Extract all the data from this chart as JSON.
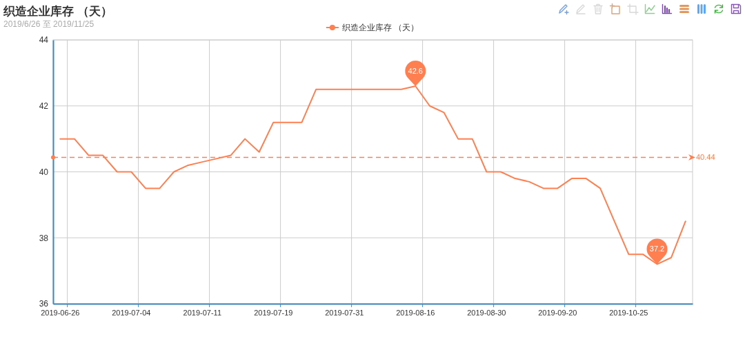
{
  "chart_data": {
    "type": "line",
    "title": "织造企业库存 （天）",
    "subtitle": "2019/6/26 至 2019/11/25",
    "categories": [
      "2019-06-26",
      null,
      null,
      null,
      null,
      "2019-07-04",
      null,
      null,
      null,
      null,
      "2019-07-11",
      null,
      null,
      null,
      null,
      "2019-07-19",
      null,
      null,
      null,
      null,
      "2019-07-31",
      null,
      null,
      null,
      null,
      "2019-08-16",
      null,
      null,
      null,
      null,
      "2019-08-30",
      null,
      null,
      null,
      null,
      "2019-09-20",
      null,
      null,
      null,
      null,
      "2019-10-25",
      null,
      null,
      null,
      null
    ],
    "series": [
      {
        "name": "织造企业库存 （天）",
        "color": "#ff7f50",
        "values": [
          41,
          41,
          40.5,
          40.5,
          40,
          40,
          39.5,
          39.5,
          40,
          40.2,
          40.3,
          40.4,
          40.5,
          41,
          40.6,
          41.5,
          41.5,
          41.5,
          42.5,
          42.5,
          42.5,
          42.5,
          42.5,
          42.5,
          42.5,
          42.6,
          42,
          41.8,
          41,
          41,
          40,
          40,
          39.8,
          39.7,
          39.5,
          39.5,
          39.8,
          39.8,
          39.5,
          38.5,
          37.5,
          37.5,
          37.2,
          37.4,
          38.5
        ],
        "value_labels": [
          null,
          null,
          null,
          null,
          null,
          null,
          null,
          null,
          null,
          null,
          null,
          null,
          null,
          null,
          null,
          null,
          null,
          null,
          null,
          null,
          null,
          null,
          null,
          null,
          null,
          "42.6",
          null,
          null,
          null,
          null,
          null,
          null,
          null,
          null,
          null,
          null,
          null,
          null,
          null,
          null,
          null,
          null,
          "37.2",
          null,
          null
        ]
      }
    ],
    "ylim": [
      36,
      44
    ],
    "yticks": [
      36,
      38,
      40,
      42,
      44
    ],
    "grid": true,
    "legend": "top",
    "ref_lines": [
      {
        "axis": "y",
        "value": 40.44,
        "label": "40.44",
        "color": "#ff7f50",
        "line_style": "dashed"
      }
    ]
  }
}
